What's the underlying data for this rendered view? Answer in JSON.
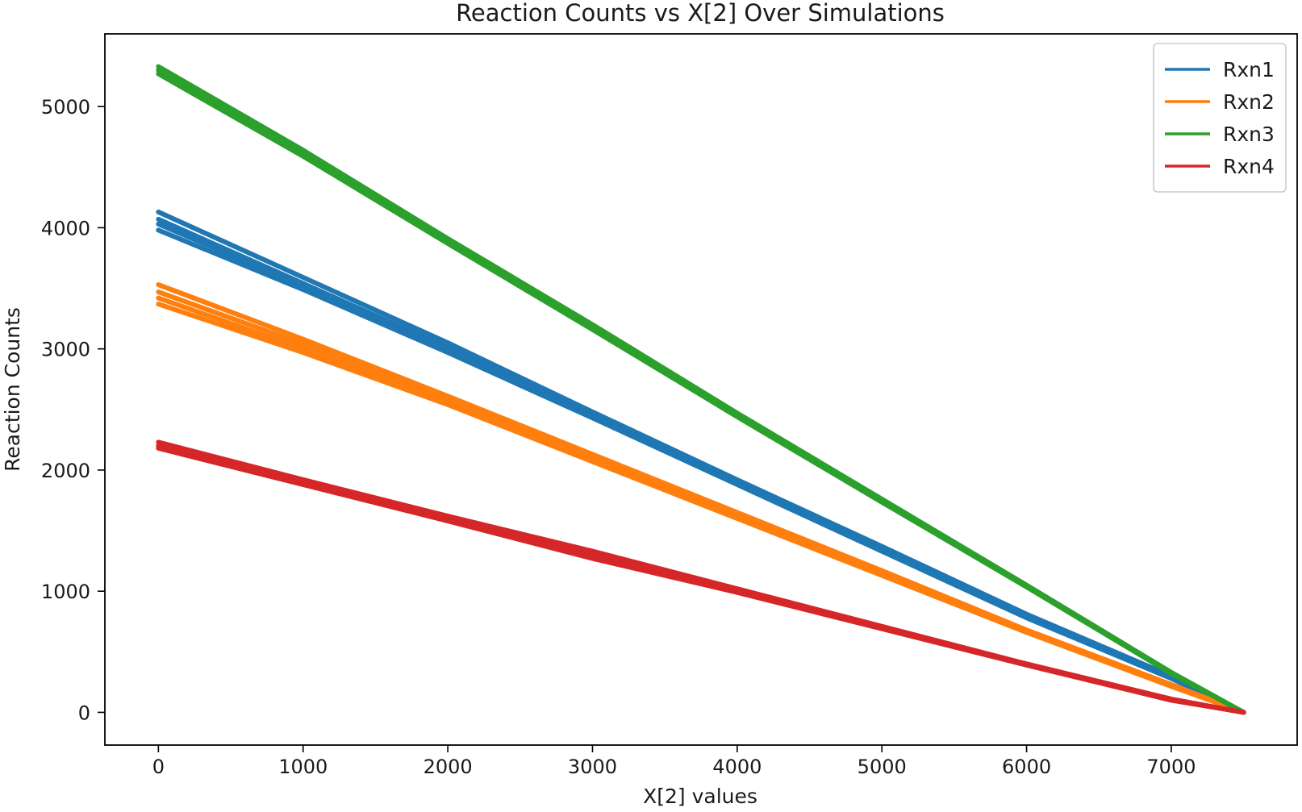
{
  "chart_data": {
    "type": "line",
    "title": "Reaction Counts vs X[2] Over Simulations",
    "xlabel": "X[2] values",
    "ylabel": "Reaction Counts",
    "xlim": [
      -370,
      7870
    ],
    "ylim": [
      -270,
      5600
    ],
    "xticks": [
      0,
      1000,
      2000,
      3000,
      4000,
      5000,
      6000,
      7000
    ],
    "yticks": [
      0,
      1000,
      2000,
      3000,
      4000,
      5000
    ],
    "grid": false,
    "legend_position": "top-right",
    "series": [
      {
        "name": "Rxn1",
        "color": "#1f77b4",
        "runs": [
          {
            "x": [
              0,
              1000,
              2000,
              3000,
              4000,
              5000,
              6000,
              7000,
              7500
            ],
            "y": [
              4130,
              3590,
              3050,
              2480,
              1920,
              1370,
              810,
              300,
              0
            ]
          },
          {
            "x": [
              0,
              1000,
              2000,
              3000,
              4000,
              5000,
              6000,
              7000,
              7500
            ],
            "y": [
              4070,
              3540,
              3010,
              2450,
              1900,
              1350,
              800,
              290,
              0
            ]
          },
          {
            "x": [
              0,
              1000,
              2000,
              3000,
              4000,
              5000,
              6000,
              7000,
              7500
            ],
            "y": [
              4030,
              3520,
              2990,
              2440,
              1890,
              1340,
              790,
              285,
              0
            ]
          },
          {
            "x": [
              0,
              1000,
              2000,
              3000,
              4000,
              5000,
              6000,
              7000,
              7500
            ],
            "y": [
              3980,
              3490,
              2970,
              2430,
              1880,
              1330,
              780,
              280,
              0
            ]
          }
        ]
      },
      {
        "name": "Rxn2",
        "color": "#ff7f0e",
        "runs": [
          {
            "x": [
              0,
              1000,
              2000,
              3000,
              4000,
              5000,
              6000,
              7000,
              7500
            ],
            "y": [
              3530,
              3080,
              2610,
              2130,
              1650,
              1170,
              680,
              230,
              0
            ]
          },
          {
            "x": [
              0,
              1000,
              2000,
              3000,
              4000,
              5000,
              6000,
              7000,
              7500
            ],
            "y": [
              3470,
              3040,
              2580,
              2110,
              1630,
              1150,
              670,
              225,
              0
            ]
          },
          {
            "x": [
              0,
              1000,
              2000,
              3000,
              4000,
              5000,
              6000,
              7000,
              7500
            ],
            "y": [
              3420,
              3000,
              2560,
              2090,
              1620,
              1140,
              665,
              220,
              0
            ]
          },
          {
            "x": [
              0,
              1000,
              2000,
              3000,
              4000,
              5000,
              6000,
              7000,
              7500
            ],
            "y": [
              3370,
              2970,
              2540,
              2070,
              1600,
              1130,
              660,
              215,
              0
            ]
          }
        ]
      },
      {
        "name": "Rxn3",
        "color": "#2ca02c",
        "runs": [
          {
            "x": [
              0,
              1000,
              2000,
              3000,
              4000,
              5000,
              6000,
              7000,
              7500
            ],
            "y": [
              5330,
              4640,
              3910,
              3200,
              2470,
              1760,
              1050,
              330,
              0
            ]
          },
          {
            "x": [
              0,
              1000,
              2000,
              3000,
              4000,
              5000,
              6000,
              7000,
              7500
            ],
            "y": [
              5300,
              4610,
              3890,
              3180,
              2450,
              1745,
              1040,
              325,
              0
            ]
          },
          {
            "x": [
              0,
              1000,
              2000,
              3000,
              4000,
              5000,
              6000,
              7000,
              7500
            ],
            "y": [
              5270,
              4590,
              3870,
              3160,
              2440,
              1735,
              1035,
              320,
              0
            ]
          }
        ]
      },
      {
        "name": "Rxn4",
        "color": "#d62728",
        "runs": [
          {
            "x": [
              0,
              1000,
              2000,
              3000,
              4000,
              5000,
              6000,
              7000,
              7500
            ],
            "y": [
              2230,
              1920,
              1620,
              1330,
              1020,
              710,
              400,
              110,
              0
            ]
          },
          {
            "x": [
              0,
              1000,
              2000,
              3000,
              4000,
              5000,
              6000,
              7000,
              7500
            ],
            "y": [
              2200,
              1900,
              1600,
              1300,
              1000,
              700,
              395,
              105,
              0
            ]
          },
          {
            "x": [
              0,
              1000,
              2000,
              3000,
              4000,
              5000,
              6000,
              7000,
              7500
            ],
            "y": [
              2180,
              1880,
              1580,
              1270,
              990,
              690,
              390,
              100,
              0
            ]
          }
        ]
      }
    ]
  }
}
